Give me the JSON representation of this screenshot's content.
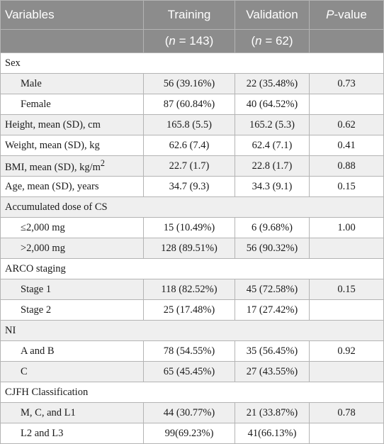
{
  "header": {
    "col_variables": "Variables",
    "col_training": "Training",
    "col_validation": "Validation",
    "col_pvalue_p": "P",
    "col_pvalue_rest": "-value",
    "training_n_open": "(",
    "training_n_var": "n",
    "training_n_rest": " = 143)",
    "validation_n_open": "(",
    "validation_n_var": "n",
    "validation_n_rest": " = 62)"
  },
  "rows": [
    {
      "label": "Sex",
      "training": "",
      "validation": "",
      "p": ""
    },
    {
      "label": "Male",
      "training": "56 (39.16%)",
      "validation": "22 (35.48%)",
      "p": "0.73"
    },
    {
      "label": "Female",
      "training": "87 (60.84%)",
      "validation": "40 (64.52%)",
      "p": ""
    },
    {
      "label": "Height, mean (SD), cm",
      "training": "165.8 (5.5)",
      "validation": "165.2 (5.3)",
      "p": "0.62"
    },
    {
      "label": "Weight, mean (SD), kg",
      "training": "62.6 (7.4)",
      "validation": "62.4 (7.1)",
      "p": "0.41"
    },
    {
      "label_main": "BMI, mean (SD), kg/m",
      "label_sup": "2",
      "training": "22.7 (1.7)",
      "validation": "22.8 (1.7)",
      "p": "0.88"
    },
    {
      "label": "Age, mean (SD), years",
      "training": "34.7 (9.3)",
      "validation": "34.3 (9.1)",
      "p": "0.15"
    },
    {
      "label": "Accumulated dose of CS",
      "training": "",
      "validation": "",
      "p": ""
    },
    {
      "label": "≤2,000 mg",
      "training": "15 (10.49%)",
      "validation": "6 (9.68%)",
      "p": "1.00"
    },
    {
      "label": ">2,000 mg",
      "training": "128 (89.51%)",
      "validation": "56 (90.32%)",
      "p": ""
    },
    {
      "label": "ARCO staging",
      "training": "",
      "validation": "",
      "p": ""
    },
    {
      "label": "Stage 1",
      "training": "118 (82.52%)",
      "validation": "45 (72.58%)",
      "p": "0.15"
    },
    {
      "label": "Stage 2",
      "training": "25 (17.48%)",
      "validation": "17 (27.42%)",
      "p": ""
    },
    {
      "label": "NI",
      "training": "",
      "validation": "",
      "p": ""
    },
    {
      "label": "A and B",
      "training": "78 (54.55%)",
      "validation": "35 (56.45%)",
      "p": "0.92"
    },
    {
      "label": "C",
      "training": "65 (45.45%)",
      "validation": "27 (43.55%)",
      "p": ""
    },
    {
      "label": "CJFH Classification",
      "training": "",
      "validation": "",
      "p": ""
    },
    {
      "label": "M, C, and L1",
      "training": "44 (30.77%)",
      "validation": "21 (33.87%)",
      "p": "0.78"
    },
    {
      "label": "L2 and L3",
      "training": "99(69.23%)",
      "validation": "41(66.13%)",
      "p": ""
    }
  ],
  "colors": {
    "header_bg": "#8c8c8c",
    "header_text": "#ffffff",
    "row_shade": "#efefef",
    "grid": "#b4b4b4"
  }
}
